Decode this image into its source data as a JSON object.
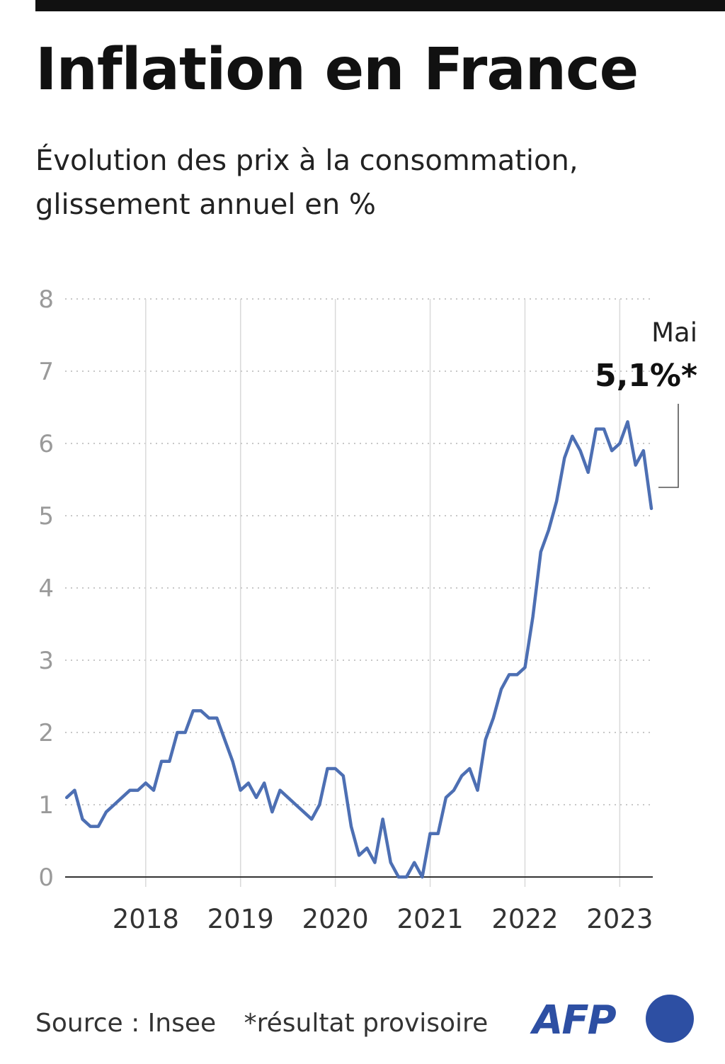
{
  "header": {
    "title": "Inflation en France",
    "subtitle_line1": "Évolution des prix à la consommation,",
    "subtitle_line2": "glissement annuel en %"
  },
  "annotation": {
    "month": "Mai",
    "value": "5,1%*"
  },
  "footer": {
    "source": "Source : Insee",
    "note": "*résultat provisoire"
  },
  "logo": {
    "text": "AFP"
  },
  "colors": {
    "line": "#4d6fb3",
    "grid": "#c8c8c8",
    "logo": "#2d4fa3"
  },
  "chart_data": {
    "type": "line",
    "title": "Inflation en France",
    "subtitle": "Évolution des prix à la consommation, glissement annuel en %",
    "xlabel": "",
    "ylabel": "",
    "x_range": [
      "2017-03",
      "2023-05"
    ],
    "ylim": [
      0,
      8
    ],
    "yticks": [
      "0",
      "1",
      "2",
      "3",
      "4",
      "5",
      "6",
      "7",
      "8"
    ],
    "xticks": [
      "2018",
      "2019",
      "2020",
      "2021",
      "2022",
      "2023"
    ],
    "grid": "horizontal dotted, vertical solid at year starts",
    "legend": "none",
    "series": [
      {
        "x": [
          "2017-03",
          "2017-04",
          "2017-05",
          "2017-06",
          "2017-07",
          "2017-08",
          "2017-09",
          "2017-10",
          "2017-11",
          "2017-12",
          "2018-01",
          "2018-02",
          "2018-03",
          "2018-04",
          "2018-05",
          "2018-06",
          "2018-07",
          "2018-08",
          "2018-09",
          "2018-10",
          "2018-11",
          "2018-12",
          "2019-01",
          "2019-02",
          "2019-03",
          "2019-04",
          "2019-05",
          "2019-06",
          "2019-07",
          "2019-08",
          "2019-09",
          "2019-10",
          "2019-11",
          "2019-12",
          "2020-01",
          "2020-02",
          "2020-03",
          "2020-04",
          "2020-05",
          "2020-06",
          "2020-07",
          "2020-08",
          "2020-09",
          "2020-10",
          "2020-11",
          "2020-12",
          "2021-01",
          "2021-02",
          "2021-03",
          "2021-04",
          "2021-05",
          "2021-06",
          "2021-07",
          "2021-08",
          "2021-09",
          "2021-10",
          "2021-11",
          "2021-12",
          "2022-01",
          "2022-02",
          "2022-03",
          "2022-04",
          "2022-05",
          "2022-06",
          "2022-07",
          "2022-08",
          "2022-09",
          "2022-10",
          "2022-11",
          "2022-12",
          "2023-01",
          "2023-02",
          "2023-03",
          "2023-04",
          "2023-05"
        ],
        "values": [
          1.1,
          1.2,
          0.8,
          0.7,
          0.7,
          0.9,
          1.0,
          1.1,
          1.2,
          1.2,
          1.3,
          1.2,
          1.6,
          1.6,
          2.0,
          2.0,
          2.3,
          2.3,
          2.2,
          2.2,
          1.9,
          1.6,
          1.2,
          1.3,
          1.1,
          1.3,
          0.9,
          1.2,
          1.1,
          1.0,
          0.9,
          0.8,
          1.0,
          1.5,
          1.5,
          1.4,
          0.7,
          0.3,
          0.4,
          0.2,
          0.8,
          0.2,
          0.0,
          0.0,
          0.2,
          0.0,
          0.6,
          0.6,
          1.1,
          1.2,
          1.4,
          1.5,
          1.2,
          1.9,
          2.2,
          2.6,
          2.8,
          2.8,
          2.9,
          3.6,
          4.5,
          4.8,
          5.2,
          5.8,
          6.1,
          5.9,
          5.6,
          6.2,
          6.2,
          5.9,
          6.0,
          6.3,
          5.7,
          5.9,
          5.1
        ]
      }
    ]
  }
}
